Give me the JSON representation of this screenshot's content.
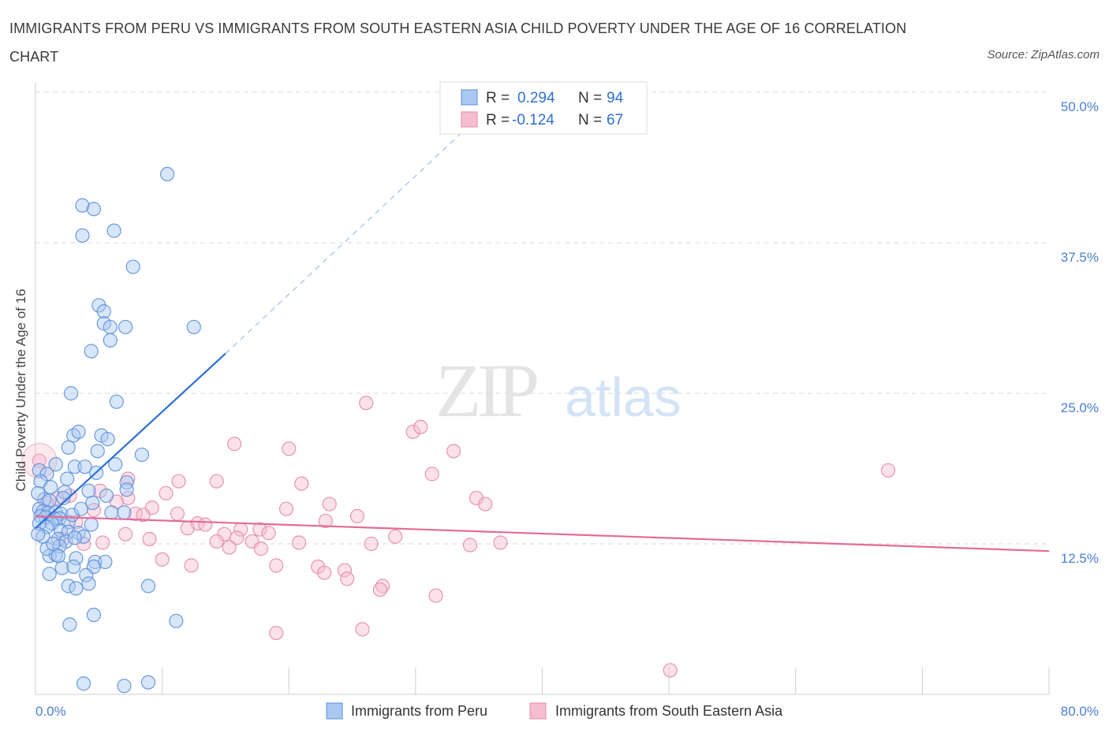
{
  "title": "IMMIGRANTS FROM PERU VS IMMIGRANTS FROM SOUTH EASTERN ASIA CHILD POVERTY UNDER THE AGE OF 16 CORRELATION CHART",
  "source": "Source: ZipAtlas.com",
  "watermark": {
    "zip": "ZIP",
    "atlas": "atlas"
  },
  "legend": {
    "r_label": "R =",
    "n_label": "N =",
    "rows": [
      {
        "r": "0.294",
        "n": "94"
      },
      {
        "r": "-0.124",
        "n": "67"
      }
    ]
  },
  "colors": {
    "peru_fill": "#a9c8f2",
    "peru_stroke": "#5b8fd9",
    "peru_line": "#2a6fd4",
    "sea_fill": "#f6bdd0",
    "sea_stroke": "#e38aaa",
    "sea_line": "#e36b97",
    "grid": "#d8d8d8",
    "axis_text": "#4a7fd4"
  },
  "chart_data": {
    "type": "scatter",
    "title": "IMMIGRANTS FROM PERU VS IMMIGRANTS FROM SOUTH EASTERN ASIA CHILD POVERTY UNDER THE AGE OF 16 CORRELATION CHART",
    "xlabel": "",
    "ylabel": "Child Poverty Under the Age of 16",
    "xlim": [
      0,
      80
    ],
    "ylim": [
      0,
      50
    ],
    "x_tick_labels": [
      "0.0%",
      "80.0%"
    ],
    "y_ticks": [
      12.5,
      25.0,
      37.5,
      50.0
    ],
    "y_tick_labels": [
      "12.5%",
      "25.0%",
      "37.5%",
      "50.0%"
    ],
    "grid": "horizontal dashed",
    "legend_position": "top-center",
    "series": [
      {
        "name": "Immigrants from Peru",
        "r": 0.294,
        "n": 94,
        "trend": {
          "x": [
            0,
            15
          ],
          "y": [
            13.8,
            28.3
          ],
          "dashed_to": {
            "x": 33.5,
            "y": 46.5
          }
        },
        "points": [
          [
            10.4,
            43.2
          ],
          [
            3.7,
            40.6
          ],
          [
            4.6,
            40.3
          ],
          [
            3.7,
            38.1
          ],
          [
            6.2,
            38.5
          ],
          [
            7.7,
            35.5
          ],
          [
            5.0,
            32.3
          ],
          [
            5.4,
            31.8
          ],
          [
            5.4,
            30.8
          ],
          [
            5.9,
            30.5
          ],
          [
            7.1,
            30.5
          ],
          [
            12.5,
            30.5
          ],
          [
            5.9,
            29.4
          ],
          [
            4.4,
            28.5
          ],
          [
            2.8,
            25.0
          ],
          [
            6.4,
            24.3
          ],
          [
            3.0,
            21.5
          ],
          [
            3.4,
            21.8
          ],
          [
            5.2,
            21.5
          ],
          [
            5.7,
            21.2
          ],
          [
            2.6,
            20.5
          ],
          [
            4.9,
            20.2
          ],
          [
            8.4,
            19.9
          ],
          [
            1.6,
            19.1
          ],
          [
            3.1,
            18.9
          ],
          [
            3.9,
            18.9
          ],
          [
            6.3,
            19.1
          ],
          [
            0.3,
            18.6
          ],
          [
            0.9,
            18.3
          ],
          [
            4.8,
            18.4
          ],
          [
            0.4,
            17.7
          ],
          [
            7.2,
            17.6
          ],
          [
            2.3,
            16.8
          ],
          [
            4.2,
            16.9
          ],
          [
            0.7,
            16.2
          ],
          [
            1.1,
            16.1
          ],
          [
            2.2,
            16.3
          ],
          [
            4.5,
            15.9
          ],
          [
            7.2,
            17.0
          ],
          [
            0.3,
            15.4
          ],
          [
            0.6,
            15.2
          ],
          [
            1.0,
            15.1
          ],
          [
            1.6,
            15.1
          ],
          [
            2.0,
            15.0
          ],
          [
            0.4,
            14.8
          ],
          [
            0.8,
            14.7
          ],
          [
            1.5,
            14.6
          ],
          [
            1.9,
            14.6
          ],
          [
            1.3,
            14.2
          ],
          [
            2.6,
            14.3
          ],
          [
            4.4,
            14.1
          ],
          [
            6.0,
            15.1
          ],
          [
            7.0,
            15.1
          ],
          [
            0.9,
            13.9
          ],
          [
            2.0,
            13.6
          ],
          [
            2.6,
            13.5
          ],
          [
            3.4,
            13.4
          ],
          [
            3.8,
            13.1
          ],
          [
            0.6,
            13.1
          ],
          [
            1.8,
            12.9
          ],
          [
            2.4,
            12.7
          ],
          [
            1.9,
            12.3
          ],
          [
            3.1,
            13.0
          ],
          [
            1.1,
            11.5
          ],
          [
            1.6,
            11.6
          ],
          [
            1.8,
            11.5
          ],
          [
            3.2,
            11.3
          ],
          [
            4.7,
            11.0
          ],
          [
            5.5,
            11.0
          ],
          [
            2.1,
            10.5
          ],
          [
            3.0,
            10.6
          ],
          [
            4.6,
            10.6
          ],
          [
            1.1,
            10.0
          ],
          [
            4.0,
            9.9
          ],
          [
            2.6,
            9.0
          ],
          [
            3.2,
            8.8
          ],
          [
            4.2,
            9.2
          ],
          [
            8.9,
            9.0
          ],
          [
            4.6,
            6.6
          ],
          [
            2.7,
            5.8
          ],
          [
            11.1,
            6.1
          ],
          [
            3.8,
            0.9
          ],
          [
            7.0,
            0.7
          ],
          [
            8.9,
            1.0
          ],
          [
            0.2,
            16.7
          ],
          [
            0.3,
            14.2
          ],
          [
            0.2,
            13.3
          ],
          [
            0.9,
            12.1
          ],
          [
            1.4,
            12.5
          ],
          [
            2.9,
            14.9
          ],
          [
            3.6,
            15.4
          ],
          [
            5.6,
            16.5
          ],
          [
            1.2,
            17.2
          ],
          [
            2.5,
            17.9
          ]
        ]
      },
      {
        "name": "Immigrants from South Eastern Asia",
        "r": -0.124,
        "n": 67,
        "trend": {
          "x": [
            0,
            80
          ],
          "y": [
            14.8,
            11.9
          ]
        },
        "points": [
          [
            0.3,
            19.4
          ],
          [
            26.1,
            24.2
          ],
          [
            29.8,
            21.8
          ],
          [
            30.4,
            22.2
          ],
          [
            15.7,
            20.8
          ],
          [
            20.0,
            20.4
          ],
          [
            33.0,
            20.2
          ],
          [
            31.3,
            18.3
          ],
          [
            67.3,
            18.6
          ],
          [
            7.3,
            17.9
          ],
          [
            11.3,
            17.7
          ],
          [
            14.3,
            17.7
          ],
          [
            21.0,
            17.5
          ],
          [
            5.1,
            16.9
          ],
          [
            10.3,
            16.7
          ],
          [
            2.7,
            16.5
          ],
          [
            1.7,
            16.3
          ],
          [
            7.3,
            16.3
          ],
          [
            6.4,
            16.0
          ],
          [
            34.8,
            16.3
          ],
          [
            23.2,
            15.8
          ],
          [
            35.5,
            15.8
          ],
          [
            0.9,
            15.9
          ],
          [
            19.8,
            15.4
          ],
          [
            9.2,
            15.5
          ],
          [
            4.6,
            15.3
          ],
          [
            7.9,
            15.0
          ],
          [
            11.2,
            15.0
          ],
          [
            8.5,
            14.9
          ],
          [
            25.4,
            14.8
          ],
          [
            12.8,
            14.2
          ],
          [
            22.9,
            14.4
          ],
          [
            3.2,
            14.3
          ],
          [
            13.4,
            14.1
          ],
          [
            12.0,
            13.8
          ],
          [
            16.2,
            13.7
          ],
          [
            17.7,
            13.7
          ],
          [
            18.4,
            13.4
          ],
          [
            14.9,
            13.3
          ],
          [
            7.1,
            13.3
          ],
          [
            15.9,
            13.0
          ],
          [
            28.4,
            13.1
          ],
          [
            9.0,
            12.9
          ],
          [
            14.3,
            12.7
          ],
          [
            17.1,
            12.7
          ],
          [
            20.8,
            12.6
          ],
          [
            26.5,
            12.5
          ],
          [
            34.3,
            12.4
          ],
          [
            36.7,
            12.6
          ],
          [
            3.8,
            12.5
          ],
          [
            5.3,
            12.6
          ],
          [
            15.3,
            12.2
          ],
          [
            17.8,
            12.1
          ],
          [
            10.0,
            11.2
          ],
          [
            12.3,
            10.7
          ],
          [
            19.0,
            10.7
          ],
          [
            22.3,
            10.6
          ],
          [
            24.4,
            10.3
          ],
          [
            22.8,
            10.1
          ],
          [
            24.6,
            9.6
          ],
          [
            27.4,
            9.0
          ],
          [
            27.2,
            8.7
          ],
          [
            31.6,
            8.2
          ],
          [
            19.0,
            5.1
          ],
          [
            25.8,
            5.4
          ],
          [
            50.1,
            2.0
          ],
          [
            2.2,
            12.9
          ]
        ]
      }
    ]
  },
  "bottom_legend": [
    {
      "label": "Immigrants from Peru"
    },
    {
      "label": "Immigrants from South Eastern Asia"
    }
  ]
}
